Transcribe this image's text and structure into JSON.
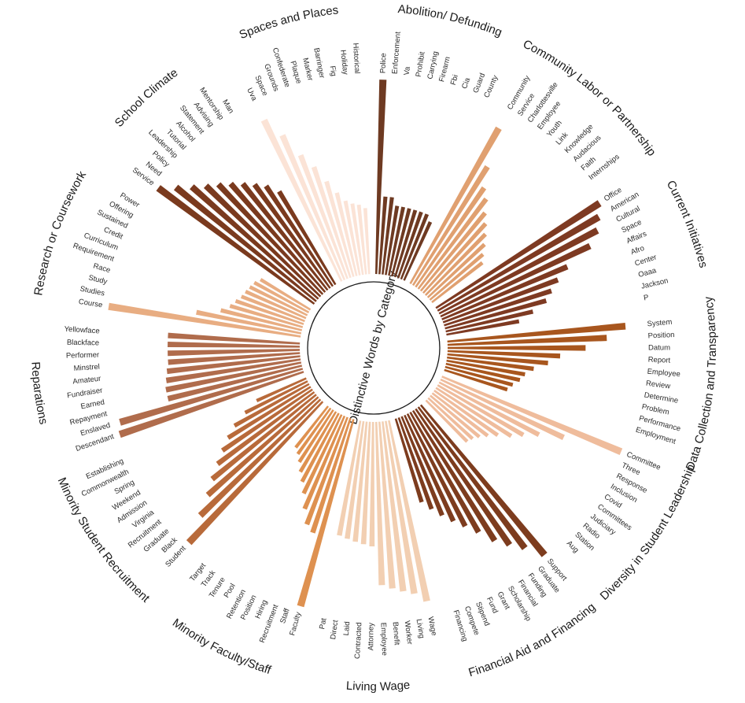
{
  "chart_data": {
    "type": "radial-bar",
    "title": "Distinctive Words by Category",
    "categories": [
      {
        "name": "Abolition/ Defunding",
        "color": "#6e3a22",
        "words": [
          "Police",
          "Enforcement",
          "Va",
          "Prohibit",
          "Carrying",
          "Firearm",
          "Fbi",
          "Cia",
          "Guard",
          "County"
        ],
        "values": [
          1.0,
          0.4,
          0.4,
          0.36,
          0.36,
          0.36,
          0.36,
          0.36,
          0.36,
          0.33
        ]
      },
      {
        "name": "Community Labor or Partnership",
        "color": "#e0a070",
        "words": [
          "Community",
          "Service",
          "Charlottesville",
          "Employee",
          "Youth",
          "Link",
          "Knowledge",
          "Audacious",
          "Faith",
          "Internships"
        ],
        "values": [
          0.92,
          0.72,
          0.62,
          0.58,
          0.52,
          0.48,
          0.44,
          0.4,
          0.36,
          0.33
        ]
      },
      {
        "name": "Current Initiatives",
        "color": "#7e3a22",
        "words": [
          "Office",
          "American",
          "Cultural",
          "Space",
          "Affairs",
          "Afro",
          "Center",
          "Oaaa",
          "Jackson",
          "P"
        ],
        "values": [
          1.0,
          0.96,
          0.92,
          0.85,
          0.7,
          0.63,
          0.58,
          0.54,
          0.46,
          0.38
        ]
      },
      {
        "name": "Data Collection and Transparency",
        "color": "#a8561e",
        "words": [
          "System",
          "Position",
          "Datum",
          "Report",
          "Employee",
          "Review",
          "Determine",
          "Problem",
          "Performance",
          "Employment"
        ],
        "values": [
          0.92,
          0.82,
          0.71,
          0.58,
          0.52,
          0.45,
          0.41,
          0.39,
          0.36,
          0.34
        ]
      },
      {
        "name": "Diversity in Student Leadership",
        "color": "#efbc9c",
        "words": [
          "Committee",
          "Three",
          "Response",
          "Inclusion",
          "Covid",
          "Committees",
          "Judiciary",
          "Radio",
          "Station",
          "Aug"
        ],
        "values": [
          1.0,
          0.7,
          0.58,
          0.51,
          0.46,
          0.4,
          0.36,
          0.33,
          0.31,
          0.3
        ]
      },
      {
        "name": "Financial Aid and Financing",
        "color": "#7d3c1e",
        "words": [
          "Support",
          "Graduate",
          "Funding",
          "Financial",
          "Scholarship",
          "Grant",
          "Fund",
          "Stipend",
          "Compete",
          "Financing"
        ],
        "values": [
          1.0,
          0.91,
          0.85,
          0.79,
          0.71,
          0.65,
          0.6,
          0.55,
          0.5,
          0.45
        ]
      },
      {
        "name": "Living Wage",
        "color": "#f2cfb2",
        "words": [
          "Wage",
          "Living",
          "Worker",
          "Benefit",
          "Employee",
          "Attorney",
          "Contracted",
          "Laid",
          "Direct",
          "Pat"
        ],
        "values": [
          0.95,
          0.9,
          0.88,
          0.86,
          0.84,
          0.64,
          0.63,
          0.62,
          0.61,
          0.6
        ]
      },
      {
        "name": "Minority Faculty/Staff",
        "color": "#de9150",
        "words": [
          "Faculty",
          "Staff",
          "Recruitment",
          "Hiring",
          "Position",
          "Retention",
          "Pool",
          "Tenure",
          "Track",
          "Target"
        ],
        "values": [
          1.0,
          0.62,
          0.59,
          0.52,
          0.45,
          0.4,
          0.36,
          0.32,
          0.29,
          0.27
        ]
      },
      {
        "name": "Minority Student Recruitment",
        "color": "#b86a3a",
        "words": [
          "Student",
          "Black",
          "Graduate",
          "Recruitment",
          "Virginia",
          "Admission",
          "Weekend",
          "Spring",
          "Commonwealth",
          "Establishing"
        ],
        "values": [
          1.0,
          0.86,
          0.76,
          0.69,
          0.62,
          0.56,
          0.5,
          0.44,
          0.36,
          0.28
        ]
      },
      {
        "name": "Reparations",
        "color": "#b06c4c",
        "words": [
          "Descendant",
          "Enslaved",
          "Repayment",
          "Earned",
          "Fundraiser",
          "Amateur",
          "Minstrel",
          "Performer",
          "Blackface",
          "Yellowface"
        ],
        "values": [
          1.0,
          0.98,
          0.71,
          0.71,
          0.7,
          0.69,
          0.68,
          0.68,
          0.68,
          0.68
        ]
      },
      {
        "name": "Research or Coursework",
        "color": "#e8ad82",
        "words": [
          "Course",
          "Studies",
          "Study",
          "Race",
          "Requirement",
          "Curriculum",
          "Credit",
          "Sustained",
          "Offering",
          "Power"
        ],
        "values": [
          1.0,
          0.55,
          0.43,
          0.39,
          0.37,
          0.35,
          0.34,
          0.33,
          0.32,
          0.3
        ]
      },
      {
        "name": "School Climate",
        "color": "#7a3a1e",
        "words": [
          "Service",
          "Need",
          "Policy",
          "Leadership",
          "Tutorial",
          "Alcohol",
          "Statement",
          "Advising",
          "Mentorship",
          "Man"
        ],
        "values": [
          1.0,
          0.93,
          0.87,
          0.82,
          0.78,
          0.74,
          0.7,
          0.66,
          0.62,
          0.56
        ]
      },
      {
        "name": "Spaces and Places",
        "color": "#fbe3d6",
        "words": [
          "Uva",
          "Space",
          "Grounds",
          "Confederate",
          "Plaque",
          "Marker",
          "Barringer",
          "Fig",
          "Holiday",
          "Historical"
        ],
        "values": [
          0.92,
          0.81,
          0.68,
          0.6,
          0.51,
          0.44,
          0.39,
          0.37,
          0.36,
          0.34
        ]
      }
    ]
  }
}
